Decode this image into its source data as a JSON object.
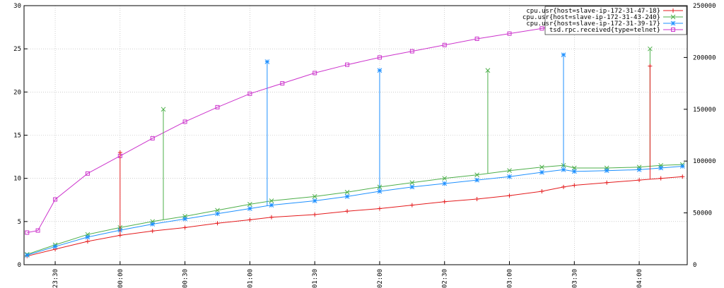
{
  "chart_data": {
    "type": "line",
    "title": "",
    "xlabel": "",
    "ylabel": "",
    "y2label": "",
    "x_ticks": [
      "23:30",
      "00:00",
      "00:30",
      "01:00",
      "01:30",
      "02:00",
      "02:30",
      "03:00",
      "03:30",
      "04:00"
    ],
    "x_tick_hours": [
      -0.5,
      0,
      0.5,
      1,
      1.5,
      2,
      2.5,
      3,
      3.5,
      4
    ],
    "x_range_hours": [
      -0.74,
      4.37
    ],
    "ylim": [
      0,
      30
    ],
    "y_ticks": [
      "0",
      "5",
      "10",
      "15",
      "20",
      "25",
      "30"
    ],
    "y2lim": [
      0,
      250000
    ],
    "y2_ticks": [
      "0",
      "50000",
      "100000",
      "150000",
      "200000",
      "250000"
    ],
    "grid": true,
    "legend_position": "top-right",
    "series": [
      {
        "name": "cpu.usr{host=slave-ip-172-31-47-18}",
        "color": "#e41a1c",
        "marker": "plus",
        "axis": "left",
        "x": [
          "23:17",
          "23:30",
          "23:45",
          "00:00",
          "00:15",
          "00:30",
          "00:45",
          "01:00",
          "01:10",
          "01:30",
          "01:45",
          "02:00",
          "02:15",
          "02:30",
          "02:45",
          "03:00",
          "03:15",
          "03:25",
          "03:30",
          "03:45",
          "04:00",
          "04:10",
          "04:20"
        ],
        "values": [
          1.0,
          1.8,
          2.7,
          3.4,
          3.9,
          4.3,
          4.8,
          5.2,
          5.5,
          5.8,
          6.2,
          6.5,
          6.9,
          7.3,
          7.6,
          8.0,
          8.5,
          9.0,
          9.2,
          9.5,
          9.8,
          10.0,
          10.2
        ]
      },
      {
        "name": "cpu.usr{host=slave-ip-172-31-43-240}",
        "color": "#4daf4a",
        "marker": "cross",
        "axis": "left",
        "x": [
          "23:17",
          "23:30",
          "23:45",
          "00:00",
          "00:15",
          "00:30",
          "00:45",
          "01:00",
          "01:10",
          "01:30",
          "01:45",
          "02:00",
          "02:15",
          "02:30",
          "02:45",
          "03:00",
          "03:15",
          "03:25",
          "03:30",
          "03:45",
          "04:00",
          "04:10",
          "04:20"
        ],
        "values": [
          1.2,
          2.3,
          3.5,
          4.3,
          5.0,
          5.6,
          6.3,
          7.0,
          7.4,
          7.9,
          8.4,
          9.0,
          9.5,
          10.0,
          10.4,
          10.9,
          11.3,
          11.5,
          11.2,
          11.2,
          11.3,
          11.5,
          11.6
        ]
      },
      {
        "name": "cpu.usr{host=slave-ip-172-31-39-17}",
        "color": "#1e90ff",
        "marker": "star",
        "axis": "left",
        "x": [
          "23:17",
          "23:30",
          "23:45",
          "00:00",
          "00:15",
          "00:30",
          "00:45",
          "01:00",
          "01:10",
          "01:30",
          "01:45",
          "02:00",
          "02:15",
          "02:30",
          "02:45",
          "03:00",
          "03:15",
          "03:25",
          "03:30",
          "03:45",
          "04:00",
          "04:10",
          "04:20"
        ],
        "values": [
          1.1,
          2.1,
          3.2,
          4.0,
          4.7,
          5.3,
          5.9,
          6.5,
          6.9,
          7.4,
          7.9,
          8.5,
          9.0,
          9.4,
          9.8,
          10.2,
          10.7,
          11.0,
          10.8,
          10.9,
          11.0,
          11.2,
          11.4
        ]
      },
      {
        "name": "tsd.rpc.received{type=telnet}",
        "color": "#cc33cc",
        "marker": "square",
        "axis": "right",
        "x": [
          "23:17",
          "23:22",
          "23:30",
          "23:45",
          "00:00",
          "00:15",
          "00:30",
          "00:45",
          "01:00",
          "01:15",
          "01:30",
          "01:45",
          "02:00",
          "02:15",
          "02:30",
          "02:45",
          "03:00",
          "03:15",
          "03:30",
          "03:45",
          "04:00",
          "04:15",
          "04:20"
        ],
        "values": [
          31000,
          33000,
          63000,
          88000,
          105000,
          122000,
          138000,
          152000,
          165000,
          175000,
          185000,
          193000,
          200000,
          206000,
          212000,
          218000,
          223000,
          228000,
          233000,
          236000,
          240000,
          243000,
          245000
        ]
      }
    ],
    "spikes": [
      {
        "series": 0,
        "x": "00:00",
        "value": 13.0
      },
      {
        "series": 1,
        "x": "00:20",
        "value": 18.0
      },
      {
        "series": 2,
        "x": "01:08",
        "value": 23.5
      },
      {
        "series": 2,
        "x": "02:00",
        "value": 22.5
      },
      {
        "series": 1,
        "x": "02:50",
        "value": 22.5
      },
      {
        "series": 2,
        "x": "03:25",
        "value": 24.3
      },
      {
        "series": 1,
        "x": "04:05",
        "value": 25.0
      },
      {
        "series": 0,
        "x": "04:05",
        "value": 23.0
      }
    ]
  }
}
